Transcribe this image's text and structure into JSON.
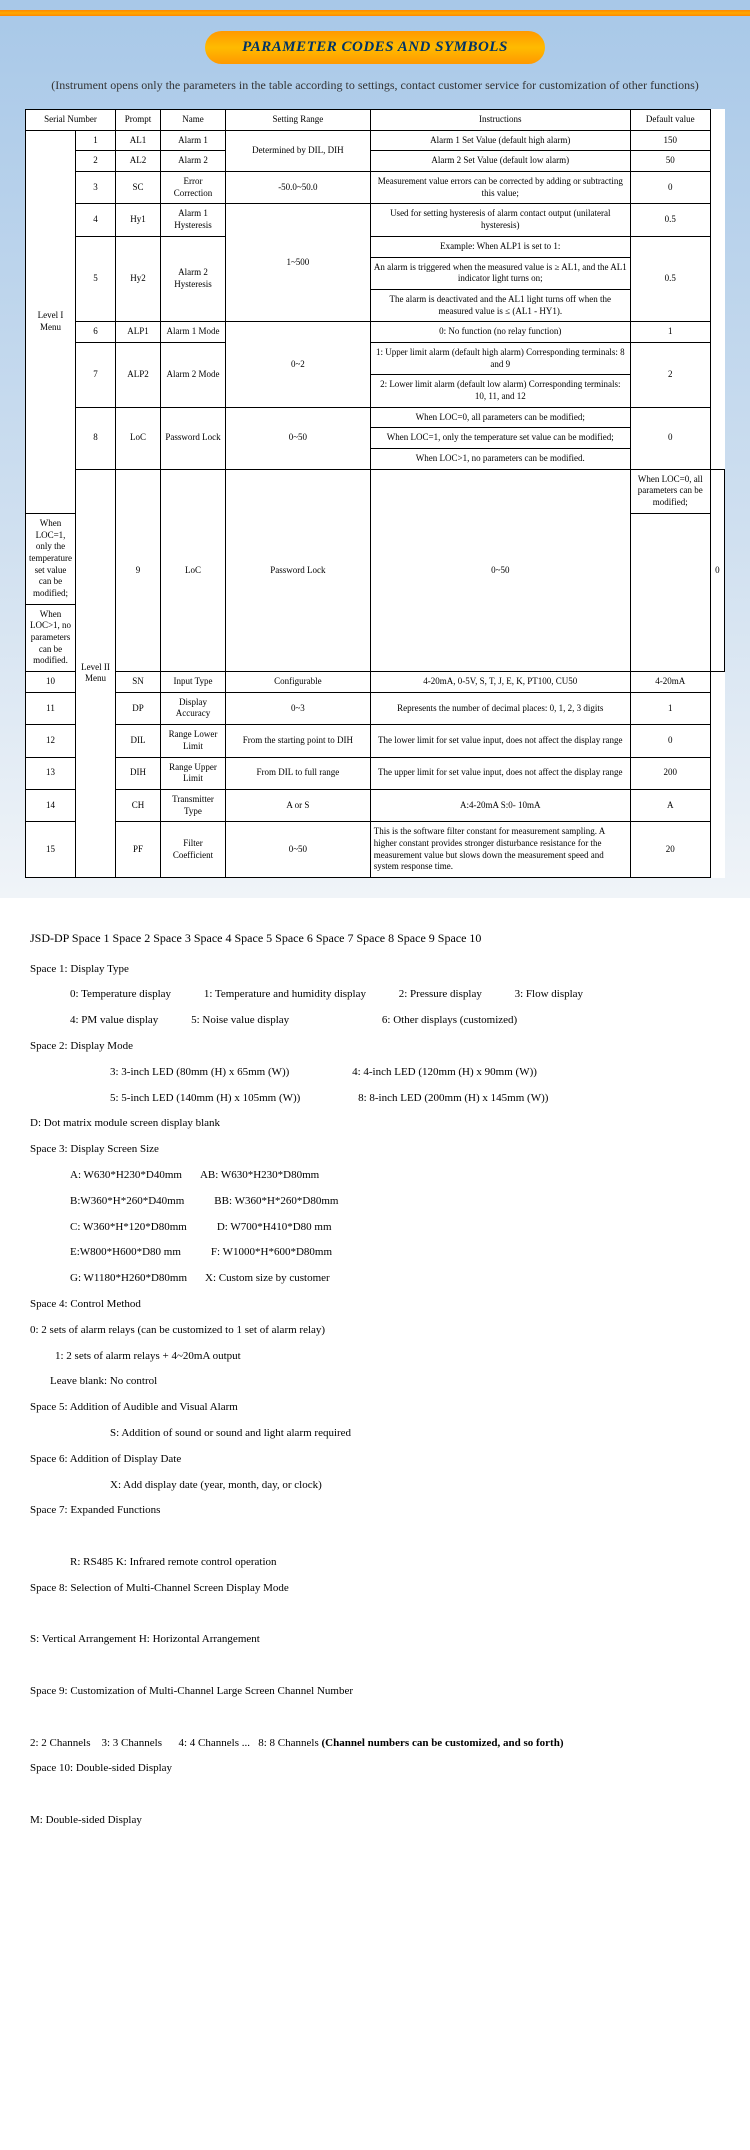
{
  "banner": {
    "title": "PARAMETER CODES AND SYMBOLS"
  },
  "subtitle": "(Instrument opens only the parameters in the table according to settings, contact customer service for customization of other functions)",
  "table": {
    "headers": [
      "Serial Number",
      "Prompt",
      "Name",
      "Setting Range",
      "Instructions",
      "Default value"
    ],
    "level1_label": "Level I Menu",
    "level2_label": "Level II Menu",
    "rows": [
      {
        "sn": "1",
        "prompt": "AL1",
        "name": "Alarm 1",
        "range": "Determined by DIL, DIH",
        "instr": "Alarm 1 Set Value (default high alarm)",
        "def": "150"
      },
      {
        "sn": "2",
        "prompt": "AL2",
        "name": "Alarm 2",
        "range": "",
        "instr": "Alarm 2 Set Value (default low alarm)",
        "def": "50"
      },
      {
        "sn": "3",
        "prompt": "SC",
        "name": "Error Correction",
        "range": "-50.0~50.0",
        "instr": "Measurement value errors can be corrected by adding or subtracting this value;",
        "def": "0"
      },
      {
        "sn": "4",
        "prompt": "Hy1",
        "name": "Alarm 1 Hysteresis",
        "range": "1~500",
        "instr": "Used for setting hysteresis of alarm contact output (unilateral hysteresis)",
        "def": "0.5"
      },
      {
        "sn": "5",
        "prompt": "Hy2",
        "name": "Alarm 2 Hysteresis",
        "range": "",
        "instr_lines": [
          "Example: When ALP1 is set to 1:",
          "An alarm is triggered when the measured value is ≥ AL1, and the AL1 indicator light turns on;",
          "The alarm is deactivated and the AL1 light turns off when the measured value is ≤ (AL1 - HY1)."
        ],
        "def": "0.5"
      },
      {
        "sn": "6",
        "prompt": "ALP1",
        "name": "Alarm 1 Mode",
        "range": "0~2",
        "instr": "0: No function (no relay function)",
        "def": "1"
      },
      {
        "sn": "7",
        "prompt": "ALP2",
        "name": "Alarm 2 Mode",
        "range": "",
        "instr_lines": [
          "1: Upper limit alarm (default high alarm) Corresponding terminals: 8 and 9",
          "2: Lower limit alarm (default low alarm) Corresponding terminals: 10, 11, and 12"
        ],
        "def": "2"
      },
      {
        "sn": "8",
        "prompt": "LoC",
        "name": "Password Lock",
        "range": "0~50",
        "instr_lines": [
          "When LOC=0, all parameters can be modified;",
          "When LOC=1, only the temperature set value can be modified;",
          "When LOC>1, no parameters can be modified."
        ],
        "def": "0"
      },
      {
        "sn": "9",
        "prompt": "LoC",
        "name": "Password Lock",
        "range": "0~50",
        "instr_lines": [
          "When LOC=0, all parameters can be modified;",
          "When LOC=1, only the temperature set value can be modified;",
          "When LOC>1, no parameters can be modified."
        ],
        "def": "0"
      },
      {
        "sn": "10",
        "prompt": "SN",
        "name": "Input Type",
        "range": "Configurable",
        "instr": "4-20mA, 0-5V, S, T, J, E, K, PT100, CU50",
        "def": "4-20mA"
      },
      {
        "sn": "11",
        "prompt": "DP",
        "name": "Display Accuracy",
        "range": "0~3",
        "instr": "Represents the number of decimal places: 0, 1, 2, 3 digits",
        "def": "1"
      },
      {
        "sn": "12",
        "prompt": "DIL",
        "name": "Range Lower Limit",
        "range": "From the starting point to DIH",
        "instr": "The lower limit for set value input, does not affect the display range",
        "def": "0"
      },
      {
        "sn": "13",
        "prompt": "DIH",
        "name": "Range Upper Limit",
        "range": "From DIL to full range",
        "instr": "The upper limit for set value input, does not affect the display range",
        "def": "200"
      },
      {
        "sn": "14",
        "prompt": "CH",
        "name": "Transmitter Type",
        "range": "A or S",
        "instr": "A:4-20mA          S:0- 10mA",
        "def": "A"
      },
      {
        "sn": "15",
        "prompt": "PF",
        "name": "Filter Coefficient",
        "range": "0~50",
        "instr": "This is the software filter constant for measurement sampling. A higher constant provides stronger disturbance resistance for the measurement value but slows down the measurement speed and system response time.",
        "def": "20"
      }
    ]
  },
  "ordering": {
    "header": "JSD-DP Space 1 Space 2 Space 3 Space 4 Space 5 Space 6 Space 7 Space 8 Space 9 Space 10",
    "spaces": {
      "s1": {
        "title": "Space 1: Display Type",
        "opts": [
          [
            "0: Temperature display",
            "1: Temperature and humidity display",
            "2: Pressure display",
            "3: Flow display"
          ],
          [
            "4: PM value display",
            "5: Noise value display",
            "6: Other displays (customized)"
          ]
        ]
      },
      "s2": {
        "title": "Space 2: Display Mode",
        "opts": [
          [
            "3: 3-inch LED (80mm (H) x 65mm (W))",
            "4: 4-inch LED (120mm (H) x 90mm (W))"
          ],
          [
            "5: 5-inch LED (140mm (H) x 105mm (W))",
            "8: 8-inch LED (200mm (H) x 145mm (W))"
          ]
        ],
        "extra": "D: Dot matrix module screen display blank"
      },
      "s3": {
        "title": "Space 3: Display Screen Size",
        "opts": [
          [
            "A: W630*H230*D40mm",
            "AB: W630*H230*D80mm"
          ],
          [
            "B:W360*H*260*D40mm",
            "BB: W360*H*260*D80mm"
          ],
          [
            "C: W360*H*120*D80mm",
            "D: W700*H410*D80 mm"
          ],
          [
            "E:W800*H600*D80 mm",
            "F: W1000*H*600*D80mm"
          ],
          [
            "G: W1180*H260*D80mm",
            "X: Custom size by customer"
          ]
        ]
      },
      "s4": {
        "title": "Space 4: Control Method",
        "lines": [
          "0: 2 sets of alarm relays (can be customized to 1 set of alarm relay)",
          "1: 2 sets of alarm relays + 4~20mA output",
          "Leave blank: No control"
        ]
      },
      "s5": {
        "title": "Space 5: Addition of Audible and Visual Alarm",
        "lines": [
          "S: Addition of sound or sound and light alarm required"
        ]
      },
      "s6": {
        "title": "Space 6: Addition of Display Date",
        "lines": [
          "X: Add display date (year, month, day, or clock)"
        ]
      },
      "s7": {
        "title": "Space 7: Expanded Functions",
        "lines": [
          "R: RS485    K: Infrared remote control operation"
        ]
      },
      "s8": {
        "title": "Space 8: Selection of Multi-Channel Screen Display Mode",
        "lines": [
          "S: Vertical Arrangement    H: Horizontal Arrangement"
        ]
      },
      "s9": {
        "title": "Space 9: Customization of Multi-Channel Large Screen Channel Number",
        "lines_html": "2: 2 Channels&nbsp;&nbsp;&nbsp;&nbsp;3: 3 Channels&nbsp;&nbsp;&nbsp;&nbsp;&nbsp;&nbsp;4: 4 Channels ...&nbsp;&nbsp;&nbsp;8: 8 Channels <b>(Channel numbers can be customized, and so forth)</b>"
      },
      "s10": {
        "title": "Space 10: Double-sided Display",
        "lines": [
          "M: Double-sided Display"
        ]
      }
    }
  }
}
